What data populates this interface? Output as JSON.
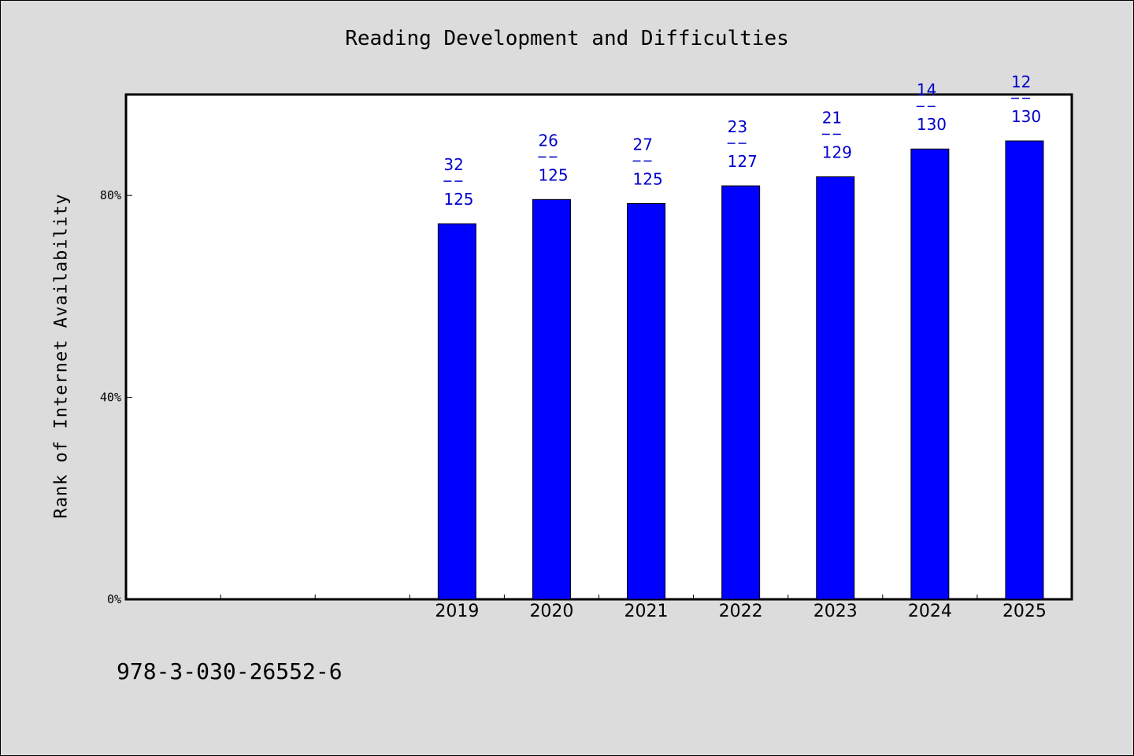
{
  "chart_data": {
    "type": "bar",
    "title": "Reading Development and Difficulties",
    "ylabel": "Rank of Internet Availability",
    "xlabel": "",
    "categories": [
      "2019",
      "2020",
      "2021",
      "2022",
      "2023",
      "2024",
      "2025"
    ],
    "values": [
      74.4,
      79.2,
      78.4,
      81.9,
      83.7,
      89.2,
      90.8
    ],
    "data_labels": [
      {
        "rank": "32",
        "total": "125"
      },
      {
        "rank": "26",
        "total": "125"
      },
      {
        "rank": "27",
        "total": "125"
      },
      {
        "rank": "23",
        "total": "127"
      },
      {
        "rank": "21",
        "total": "129"
      },
      {
        "rank": "14",
        "total": "130"
      },
      {
        "rank": "12",
        "total": "130"
      }
    ],
    "yticks": [
      {
        "value": 0,
        "label": "0%"
      },
      {
        "value": 40,
        "label": "40%"
      },
      {
        "value": 80,
        "label": "80%"
      }
    ],
    "ylim": [
      0,
      100
    ],
    "x_slots": 10,
    "empty_leading_slots": 3,
    "grid": false,
    "legend": "none",
    "colors": {
      "bar": "#0000ff",
      "label": "#0000cc",
      "background": "#dcdcdc",
      "plot": "#ffffff"
    }
  },
  "footer": {
    "isbn": "978-3-030-26552-6"
  }
}
